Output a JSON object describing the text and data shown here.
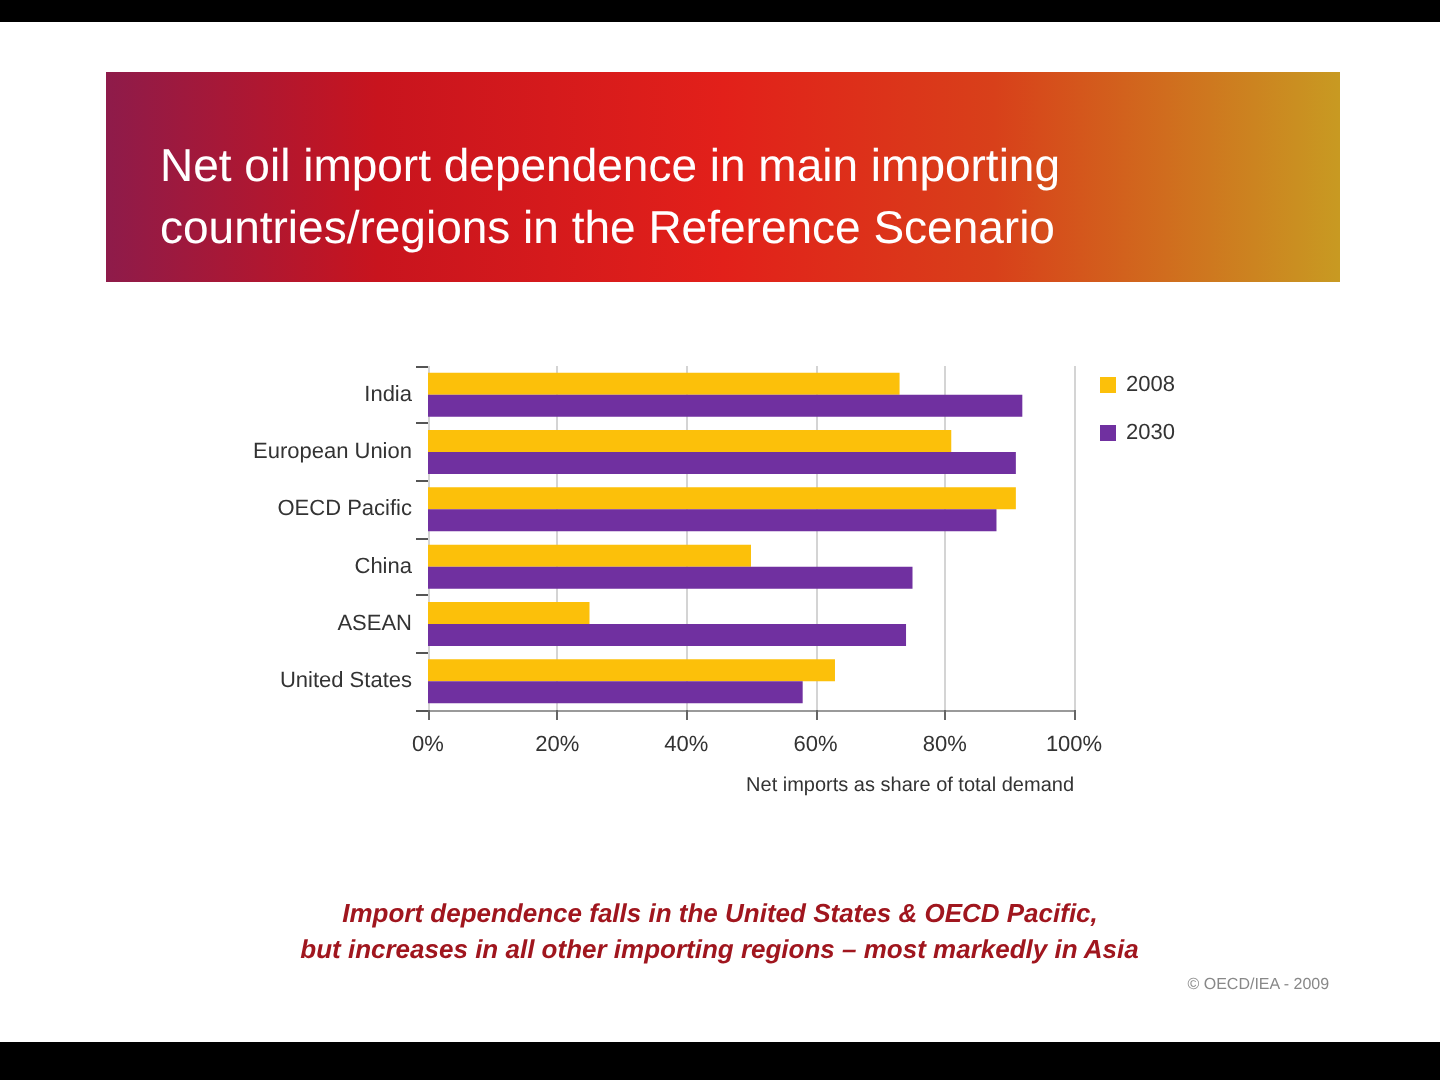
{
  "chart_data": {
    "type": "bar",
    "orientation": "horizontal",
    "title": "Net oil import dependence in main importing countries/regions in the Reference Scenario",
    "xlabel": "Net imports as share of total demand",
    "categories": [
      "India",
      "European Union",
      "OECD Pacific",
      "China",
      "ASEAN",
      "United States"
    ],
    "series": [
      {
        "name": "2008",
        "color": "#fcc00a",
        "values": [
          73,
          81,
          91,
          50,
          25,
          63
        ]
      },
      {
        "name": "2030",
        "color": "#7030a0",
        "values": [
          92,
          91,
          88,
          75,
          74,
          58
        ]
      }
    ],
    "xlim": [
      0,
      100
    ],
    "xticks": [
      {
        "value": 0,
        "label": "0%"
      },
      {
        "value": 20,
        "label": "20%"
      },
      {
        "value": 40,
        "label": "40%"
      },
      {
        "value": 60,
        "label": "60%"
      },
      {
        "value": 80,
        "label": "80%"
      },
      {
        "value": 100,
        "label": "100%"
      }
    ],
    "grid": "x",
    "legend": "top right",
    "annotations": [
      "Import dependence falls in the United States & OECD Pacific,",
      "but increases in all other importing regions – most markedly in Asia",
      "© OECD/IEA - 2009"
    ]
  }
}
